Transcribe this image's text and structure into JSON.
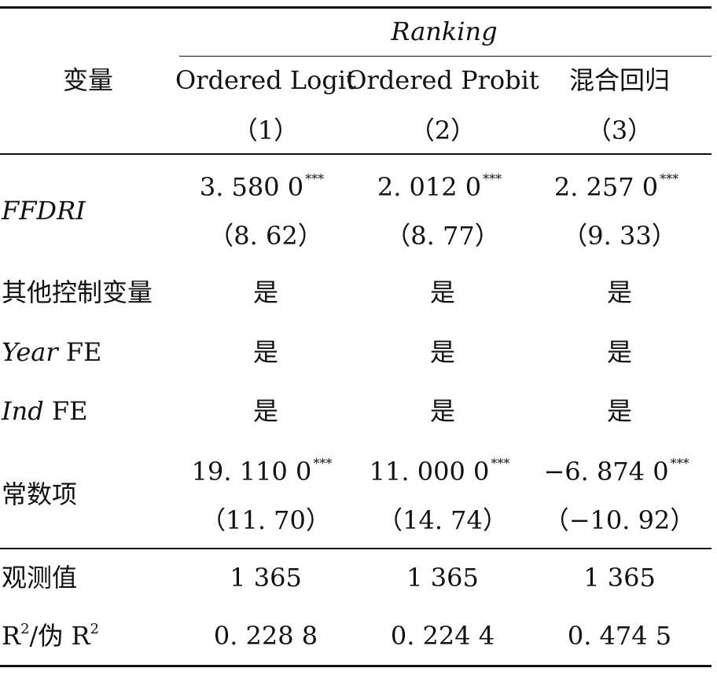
{
  "header": {
    "variable_label": "变量",
    "group_label": "Ranking",
    "columns": [
      {
        "name": "Ordered Logit",
        "number": "（1）"
      },
      {
        "name": "Ordered Probit",
        "number": "（2）"
      },
      {
        "name": "混合回归",
        "number": "（3）"
      }
    ]
  },
  "rows": {
    "ffdri": {
      "label": "FFDRI",
      "values": [
        {
          "coef": "3. 580 0",
          "stars": "***",
          "t": "（8. 62）"
        },
        {
          "coef": "2. 012 0",
          "stars": "***",
          "t": "（8. 77）"
        },
        {
          "coef": "2. 257 0",
          "stars": "***",
          "t": "（9. 33）"
        }
      ]
    },
    "controls": {
      "label": "其他控制变量",
      "values": [
        "是",
        "是",
        "是"
      ]
    },
    "year_fe": {
      "label_italic": "Year",
      "label_rest": " FE",
      "values": [
        "是",
        "是",
        "是"
      ]
    },
    "ind_fe": {
      "label_italic": "Ind",
      "label_rest": " FE",
      "values": [
        "是",
        "是",
        "是"
      ]
    },
    "constant": {
      "label": "常数项",
      "values": [
        {
          "coef": "19. 110 0",
          "stars": "***",
          "t": "（11. 70）"
        },
        {
          "coef": "11. 000 0",
          "stars": "***",
          "t": "（14. 74）"
        },
        {
          "coef": "−6. 874 0",
          "stars": "***",
          "t": "（−10. 92）"
        }
      ]
    },
    "observations": {
      "label": "观测值",
      "values": [
        "1 365",
        "1 365",
        "1 365"
      ]
    },
    "r2": {
      "label_a": "R",
      "sup_a": "2",
      "label_mid": "/伪 R",
      "sup_b": "2",
      "values": [
        "0. 228 8",
        "0. 224 4",
        "0. 474 5"
      ]
    }
  }
}
